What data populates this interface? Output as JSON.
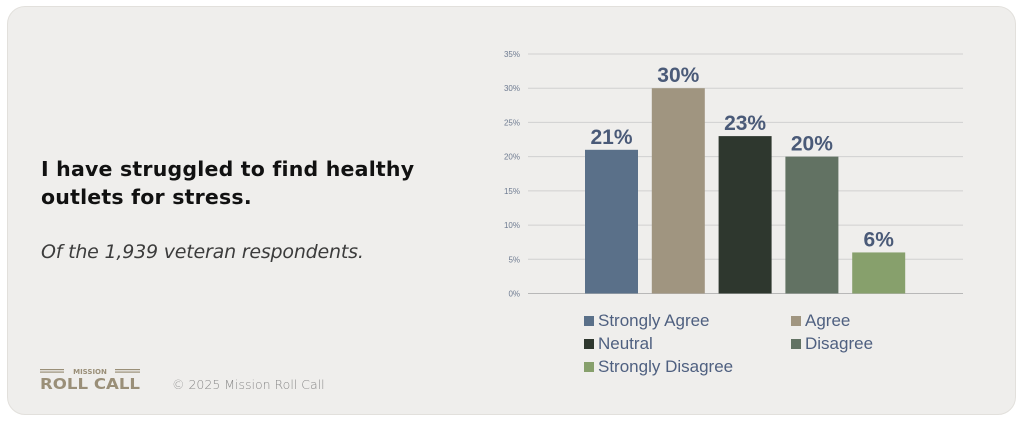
{
  "title": "I have struggled to find healthy outlets for stress.",
  "subtitle": "Of the 1,939 veteran respondents.",
  "footer": {
    "logo_text_top": "MISSION",
    "logo_text_main": "ROLL CALL",
    "copyright": "© 2025 Mission Roll Call"
  },
  "colors": {
    "label": "#4a5a78",
    "logo": "#9a8f78"
  },
  "chart_data": {
    "type": "bar",
    "title": "",
    "xlabel": "",
    "ylabel": "",
    "categories": [
      "Strongly Agree",
      "Agree",
      "Neutral",
      "Disagree",
      "Strongly Disagree"
    ],
    "values": [
      21,
      30,
      23,
      20,
      6
    ],
    "data_labels": [
      "21%",
      "30%",
      "23%",
      "20%",
      "6%"
    ],
    "colors": [
      "#5a7089",
      "#a09580",
      "#2e372e",
      "#627263",
      "#87a06c"
    ],
    "ylim": [
      0,
      35
    ],
    "yticks": [
      0,
      5,
      10,
      15,
      20,
      25,
      30,
      35
    ],
    "ytick_labels": [
      "0%",
      "5%",
      "10%",
      "15%",
      "20%",
      "25%",
      "30%",
      "35%"
    ],
    "grid": true,
    "legend_position": "bottom"
  }
}
